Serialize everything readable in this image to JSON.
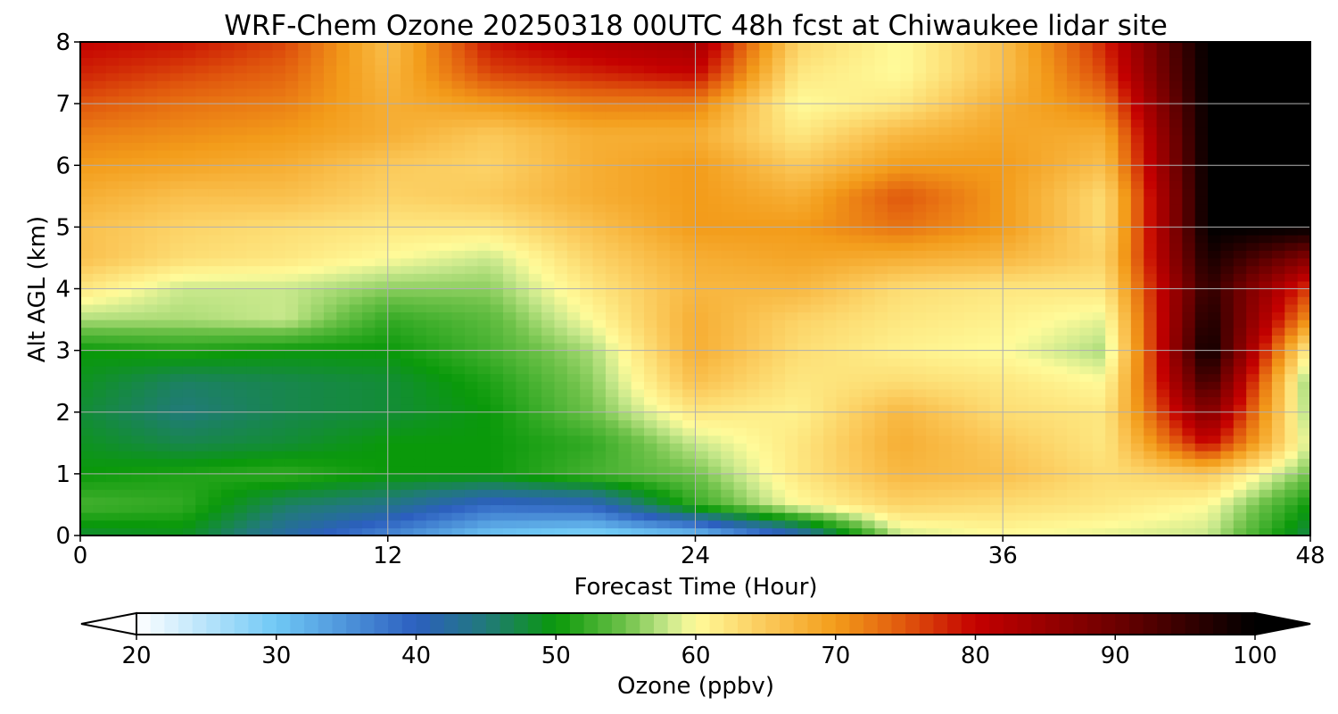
{
  "figure": {
    "title": "WRF-Chem Ozone  20250318 00UTC 48h fcst at Chiwaukee lidar site"
  },
  "chart_data": {
    "type": "heatmap",
    "title": "WRF-Chem Ozone  20250318 00UTC 48h fcst at Chiwaukee lidar site",
    "xlabel": "Forecast Time (Hour)",
    "ylabel": "Alt AGL (km)",
    "xlim": [
      0,
      48
    ],
    "ylim": [
      0,
      8
    ],
    "x_ticks": [
      0,
      12,
      24,
      36,
      48
    ],
    "y_ticks": [
      0,
      1,
      2,
      3,
      4,
      5,
      6,
      7,
      8
    ],
    "grid": true,
    "grid_x": [
      0,
      4,
      8,
      12,
      16,
      20,
      24,
      28,
      32,
      36,
      40,
      44,
      48
    ],
    "grid_y": [
      0,
      0.5,
      1,
      1.5,
      2,
      2.5,
      3,
      3.5,
      4,
      4.5,
      5,
      5.5,
      6,
      6.5,
      7,
      7.5,
      8
    ],
    "z_ozone_ppbv": [
      [
        48,
        49,
        42,
        36,
        30,
        28,
        30,
        40,
        58,
        60,
        59,
        58,
        47
      ],
      [
        53,
        52,
        46,
        44,
        39,
        40,
        52,
        60,
        64,
        63,
        62,
        60,
        50
      ],
      [
        50,
        51,
        52,
        50,
        50,
        53,
        55,
        62,
        67,
        66,
        63,
        65,
        55
      ],
      [
        49,
        47,
        48,
        50,
        50,
        52,
        58,
        62,
        68,
        65,
        62,
        80,
        58
      ],
      [
        48,
        45,
        47,
        48,
        50,
        55,
        62,
        61,
        67,
        63,
        62,
        88,
        56
      ],
      [
        49,
        46,
        47,
        48,
        51,
        56,
        66,
        62,
        63,
        62,
        60,
        95,
        55
      ],
      [
        50,
        51,
        50,
        50,
        53,
        57,
        68,
        63,
        61,
        60,
        57,
        100,
        60
      ],
      [
        57,
        57,
        58,
        52,
        54,
        60,
        68,
        64,
        62,
        61,
        59,
        98,
        70
      ],
      [
        62,
        58,
        58,
        56,
        56,
        62,
        67,
        67,
        63,
        62,
        62,
        96,
        76
      ],
      [
        66,
        63,
        62,
        60,
        58,
        64,
        68,
        69,
        68,
        67,
        64,
        98,
        87
      ],
      [
        66,
        64,
        63,
        62,
        62,
        66,
        70,
        70,
        73,
        70,
        63,
        100,
        100
      ],
      [
        68,
        66,
        66,
        64,
        65,
        68,
        70,
        68,
        75,
        70,
        63,
        100,
        100
      ],
      [
        70,
        69,
        68,
        65,
        64,
        68,
        70,
        65,
        70,
        70,
        66,
        100,
        100
      ],
      [
        72,
        71,
        70,
        68,
        65,
        68,
        68,
        62,
        67,
        69,
        68,
        100,
        100
      ],
      [
        75,
        73,
        72,
        68,
        70,
        72,
        72,
        60,
        62,
        68,
        72,
        100,
        100
      ],
      [
        78,
        76,
        74,
        67,
        76,
        78,
        80,
        62,
        60,
        66,
        76,
        100,
        100
      ],
      [
        80,
        79,
        76,
        66,
        79,
        82,
        84,
        64,
        60,
        66,
        78,
        100,
        100
      ]
    ],
    "colorbar": {
      "label": "Ozone  (ppbv)",
      "min": 20,
      "max": 100,
      "ticks": [
        20,
        30,
        40,
        50,
        60,
        70,
        80,
        90,
        100
      ],
      "extend": "both",
      "color_stops": [
        {
          "value": 20,
          "color": "#ffffff"
        },
        {
          "value": 30,
          "color": "#6fc8f5"
        },
        {
          "value": 40,
          "color": "#2c5fbf"
        },
        {
          "value": 45,
          "color": "#217a7a"
        },
        {
          "value": 50,
          "color": "#0a990a"
        },
        {
          "value": 55,
          "color": "#6fc24a"
        },
        {
          "value": 58,
          "color": "#c8e88c"
        },
        {
          "value": 60,
          "color": "#fffb9a"
        },
        {
          "value": 65,
          "color": "#fbc95a"
        },
        {
          "value": 70,
          "color": "#f39c1a"
        },
        {
          "value": 75,
          "color": "#e0560d"
        },
        {
          "value": 80,
          "color": "#c40000"
        },
        {
          "value": 90,
          "color": "#6d0000"
        },
        {
          "value": 100,
          "color": "#000000"
        }
      ]
    }
  }
}
